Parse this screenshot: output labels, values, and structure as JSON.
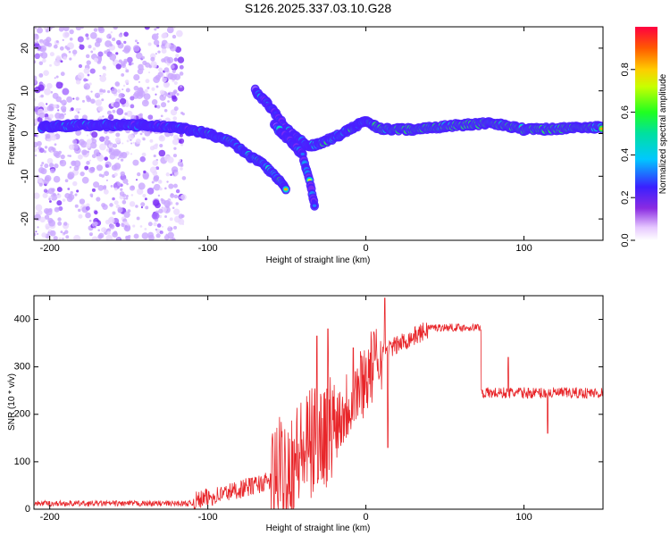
{
  "title": "S126.2025.337.03.10.G28",
  "chart_data": [
    {
      "type": "heatmap",
      "name": "spectrogram",
      "xlabel": "Height of straight line (km)",
      "ylabel": "Frequency (Hz)",
      "xlim": [
        -210,
        150
      ],
      "ylim": [
        -25,
        25
      ],
      "xticks": [
        -200,
        -100,
        0,
        100
      ],
      "yticks": [
        -20,
        -10,
        0,
        10,
        20
      ],
      "colorbar": {
        "label": "Normalized spectral amplitude",
        "range": [
          0,
          1
        ],
        "ticks": [
          "0.0",
          "0.2",
          "0.4",
          "0.6",
          "0.8"
        ],
        "tick_values": [
          0,
          0.2,
          0.4,
          0.6,
          0.8
        ],
        "colormap": "rainbow (white-violet-blue-cyan-green-yellow-red)"
      },
      "ridges": [
        {
          "name": "main-signal",
          "points": [
            [
              -205,
              1.5
            ],
            [
              -180,
              2
            ],
            [
              -150,
              2
            ],
            [
              -120,
              1.5
            ],
            [
              -100,
              0
            ],
            [
              -85,
              -2
            ],
            [
              -75,
              -5
            ],
            [
              -65,
              -7
            ],
            [
              -55,
              -11
            ],
            [
              -50,
              -13
            ]
          ]
        },
        {
          "name": "descending-branch",
          "points": [
            [
              -70,
              10
            ],
            [
              -60,
              6
            ],
            [
              -50,
              1
            ],
            [
              -40,
              -2
            ],
            [
              -35,
              -3
            ]
          ]
        },
        {
          "name": "low-branch",
          "points": [
            [
              -58,
              2
            ],
            [
              -50,
              -1
            ],
            [
              -40,
              -5
            ],
            [
              -35,
              -12
            ],
            [
              -32,
              -18
            ]
          ]
        },
        {
          "name": "converged-signal",
          "points": [
            [
              -35,
              -3
            ],
            [
              -20,
              -1
            ],
            [
              -10,
              1
            ],
            [
              0,
              3
            ],
            [
              10,
              1
            ],
            [
              30,
              1
            ],
            [
              60,
              2
            ],
            [
              80,
              2.5
            ],
            [
              100,
              1
            ],
            [
              110,
              1
            ],
            [
              150,
              1.5
            ]
          ]
        }
      ]
    },
    {
      "type": "line",
      "name": "snr",
      "xlabel": "Height of straight line (km)",
      "ylabel": "SNR (10 * v/v)",
      "xlim": [
        -210,
        150
      ],
      "ylim": [
        0,
        450
      ],
      "xticks": [
        -200,
        -100,
        0,
        100
      ],
      "yticks": [
        0,
        100,
        200,
        300,
        400
      ],
      "color": "#e8262a",
      "segments": [
        {
          "x": [
            -210,
            -110
          ],
          "mean": 12,
          "noise": 6
        },
        {
          "x": [
            -110,
            -60
          ],
          "mean_from": 15,
          "mean_to": 60,
          "noise": 20
        },
        {
          "x": [
            -60,
            -20
          ],
          "mean_from": 60,
          "mean_to": 180,
          "noise": 120
        },
        {
          "x": [
            -20,
            10
          ],
          "mean_from": 180,
          "mean_to": 330,
          "noise": 80
        },
        {
          "x": [
            10,
            40
          ],
          "mean_from": 330,
          "mean_to": 380,
          "noise": 20
        },
        {
          "x": [
            40,
            73
          ],
          "mean": 383,
          "noise": 8
        },
        {
          "x": [
            73,
            150
          ],
          "mean": 245,
          "noise": 12
        }
      ],
      "peaks": [
        [
          12,
          445
        ],
        [
          14,
          130
        ],
        [
          -24,
          380
        ],
        [
          -31,
          365
        ],
        [
          90,
          320
        ],
        [
          115,
          160
        ],
        [
          -8,
          340
        ]
      ]
    }
  ]
}
